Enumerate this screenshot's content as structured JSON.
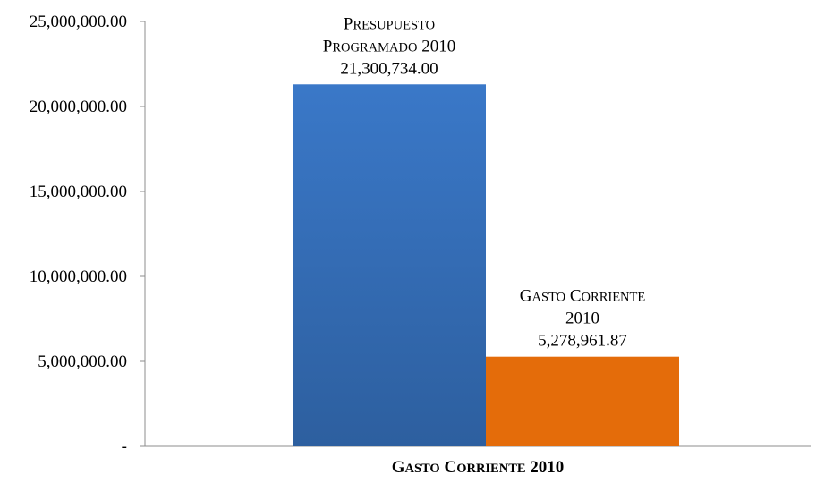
{
  "chart_data": {
    "type": "bar",
    "categories": [
      "Gasto Corriente 2010"
    ],
    "xlabel": "Gasto Corriente 2010",
    "ylabel": "",
    "ylim": [
      0,
      25000000
    ],
    "yticks": [
      0,
      5000000,
      10000000,
      15000000,
      20000000,
      25000000
    ],
    "ytick_labels": [
      "-",
      "5,000,000.00",
      "10,000,000.00",
      "15,000,000.00",
      "20,000,000.00",
      "25,000,000.00"
    ],
    "grid": false,
    "legend": "none",
    "series": [
      {
        "label_lines": [
          "Presupuesto",
          "Programado 2010"
        ],
        "value_text": "21,300,734.00",
        "values": [
          21300734.0
        ],
        "color": "#3a78c8",
        "color_dark": "#2d5f9f"
      },
      {
        "label_lines": [
          "Gasto Corriente",
          "2010"
        ],
        "value_text": "5,278,961.87",
        "values": [
          5278961.87
        ],
        "color": "#e46c0a"
      }
    ]
  }
}
